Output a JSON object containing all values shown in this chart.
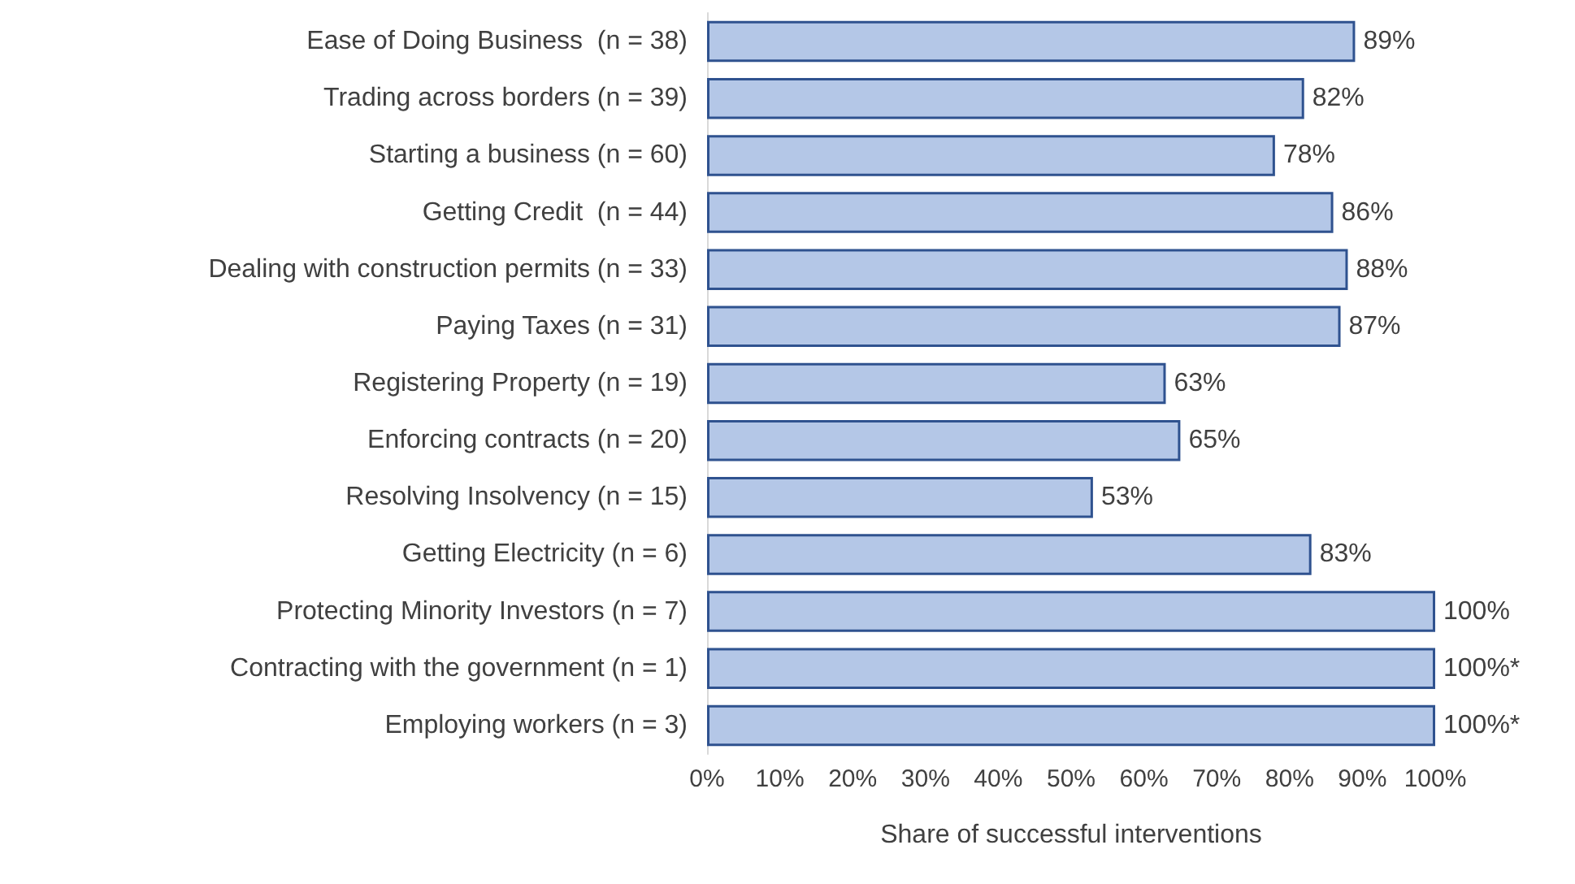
{
  "chart_data": {
    "type": "bar",
    "orientation": "horizontal",
    "xlabel": "Share of successful interventions",
    "categories": [
      "Ease of Doing Business  (n = 38)",
      "Trading across borders (n = 39)",
      "Starting a business (n = 60)",
      "Getting Credit  (n = 44)",
      "Dealing with construction permits (n = 33)",
      "Paying Taxes (n = 31)",
      "Registering Property (n = 19)",
      "Enforcing contracts (n = 20)",
      "Resolving Insolvency (n = 15)",
      "Getting Electricity (n = 6)",
      "Protecting Minority Investors (n = 7)",
      "Contracting with the government (n = 1)",
      "Employing workers (n = 3)"
    ],
    "values": [
      89,
      82,
      78,
      86,
      88,
      87,
      63,
      65,
      53,
      83,
      100,
      100,
      100
    ],
    "value_labels": [
      "89%",
      "82%",
      "78%",
      "86%",
      "88%",
      "87%",
      "63%",
      "65%",
      "53%",
      "83%",
      "100%",
      "100%*",
      "100%*"
    ],
    "color": "#b4c7e7",
    "xlim": [
      0,
      100
    ],
    "xticks": [
      {
        "value": 0,
        "label": "0%"
      },
      {
        "value": 10,
        "label": "10%"
      },
      {
        "value": 20,
        "label": "20%"
      },
      {
        "value": 30,
        "label": "30%"
      },
      {
        "value": 40,
        "label": "40%"
      },
      {
        "value": 50,
        "label": "50%"
      },
      {
        "value": 60,
        "label": "60%"
      },
      {
        "value": 70,
        "label": "70%"
      },
      {
        "value": 80,
        "label": "80%"
      },
      {
        "value": 90,
        "label": "90%"
      },
      {
        "value": 100,
        "label": "100%"
      }
    ],
    "grid": false
  }
}
